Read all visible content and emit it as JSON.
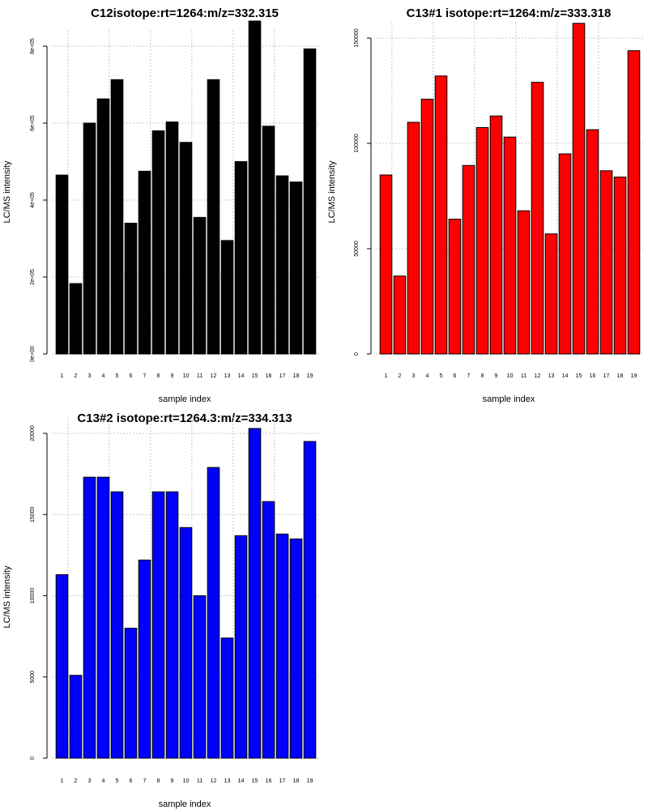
{
  "chart_data": [
    {
      "type": "bar",
      "title": "C12isotope:rt=1264:m/z=332.315",
      "xlabel": "sample index",
      "ylabel": "LC/MS intensity",
      "fill_color": "#000000",
      "categories": [
        "1",
        "2",
        "3",
        "4",
        "5",
        "6",
        "7",
        "8",
        "9",
        "10",
        "11",
        "12",
        "13",
        "14",
        "15",
        "16",
        "17",
        "18",
        "19"
      ],
      "values": [
        465000,
        183000,
        600000,
        663000,
        713000,
        340000,
        475000,
        580000,
        603000,
        550000,
        355000,
        713000,
        295000,
        500000,
        870000,
        592000,
        463000,
        447000,
        793000
      ],
      "ylim": [
        0,
        800000
      ],
      "yticks": [
        0,
        200000,
        400000,
        600000,
        800000
      ],
      "ytick_labels": [
        "0e+00",
        "2e+05",
        "4e+05",
        "6e+05",
        "8e+05"
      ]
    },
    {
      "type": "bar",
      "title": "C13#1 isotope:rt=1264:m/z=333.318",
      "xlabel": "sample index",
      "ylabel": "LC/MS intensity",
      "fill_color": "#ff0000",
      "categories": [
        "1",
        "2",
        "3",
        "4",
        "5",
        "6",
        "7",
        "8",
        "9",
        "10",
        "11",
        "12",
        "13",
        "14",
        "15",
        "16",
        "17",
        "18",
        "19"
      ],
      "values": [
        85000,
        37000,
        110000,
        121000,
        132000,
        64000,
        89500,
        107500,
        113000,
        103000,
        68000,
        129000,
        57000,
        95000,
        157000,
        106500,
        87000,
        84000,
        144000
      ],
      "ylim": [
        0,
        150000
      ],
      "yticks": [
        0,
        50000,
        100000,
        150000
      ],
      "ytick_labels": [
        "0",
        "50000",
        "100000",
        "150000"
      ]
    },
    {
      "type": "bar",
      "title": "C13#2 isotope:rt=1264.3:m/z=334.313",
      "xlabel": "sample index",
      "ylabel": "LC/MS intensity",
      "fill_color": "#0000ff",
      "categories": [
        "1",
        "2",
        "3",
        "4",
        "5",
        "6",
        "7",
        "8",
        "9",
        "10",
        "11",
        "12",
        "13",
        "14",
        "15",
        "16",
        "17",
        "18",
        "19"
      ],
      "values": [
        11300,
        5100,
        17300,
        17300,
        16400,
        8000,
        12200,
        16400,
        16400,
        14200,
        10000,
        17900,
        7400,
        13700,
        20300,
        15800,
        13800,
        13500,
        19500
      ],
      "ylim": [
        0,
        20000
      ],
      "yticks": [
        0,
        5000,
        10000,
        15000,
        20000
      ],
      "ytick_labels": [
        "0",
        "5000",
        "10000",
        "15000",
        "20000"
      ]
    }
  ]
}
